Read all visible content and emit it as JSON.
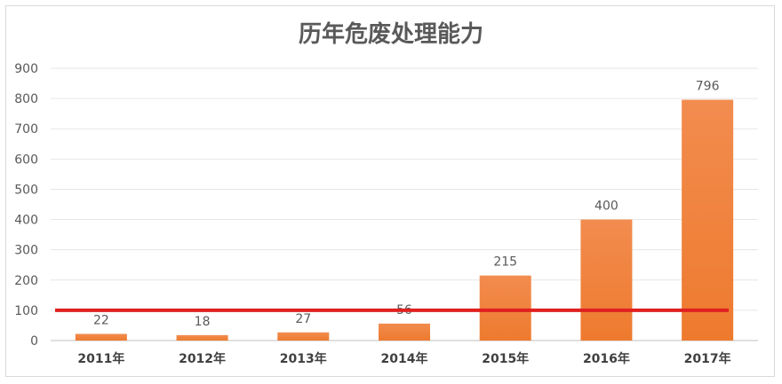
{
  "chart_data": {
    "type": "bar",
    "title": "历年危废处理能力",
    "categories": [
      "2011年",
      "2012年",
      "2013年",
      "2014年",
      "2015年",
      "2016年",
      "2017年"
    ],
    "values": [
      22,
      18,
      27,
      56,
      215,
      400,
      796
    ],
    "ylim": [
      0,
      900
    ],
    "yticks": [
      0,
      100,
      200,
      300,
      400,
      500,
      600,
      700,
      800,
      900
    ],
    "grid": true,
    "legend": "none",
    "bar_color_top": "#f28c4f",
    "bar_color_bottom": "#ee7a2e",
    "reference_line": {
      "value": 100,
      "color": "#e02020"
    }
  }
}
